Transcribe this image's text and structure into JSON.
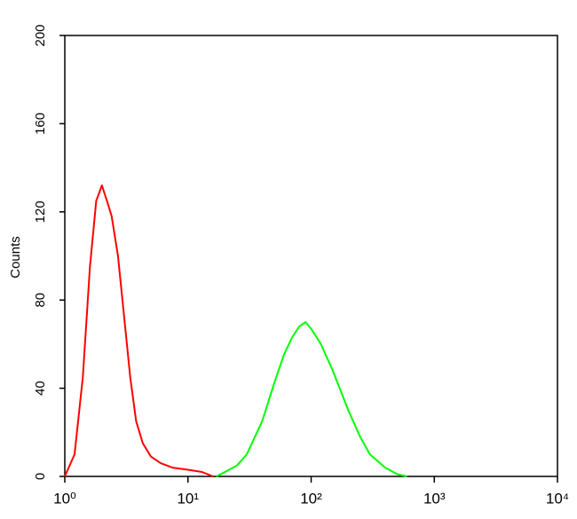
{
  "chart_data": {
    "type": "line",
    "y_label": "Counts",
    "xscale": "log",
    "xlim": [
      1,
      10000
    ],
    "xticks": [
      {
        "value": 1,
        "label": "10⁰"
      },
      {
        "value": 10,
        "label": "10¹"
      },
      {
        "value": 100,
        "label": "10²"
      },
      {
        "value": 1000,
        "label": "10³"
      },
      {
        "value": 10000,
        "label": "10⁴"
      }
    ],
    "ylim": [
      0,
      200
    ],
    "yticks": [
      0,
      40,
      80,
      120,
      160,
      200
    ],
    "series": [
      {
        "color": "#ff0000",
        "x": [
          1,
          1.2,
          1.4,
          1.6,
          1.8,
          2.0,
          2.2,
          2.4,
          2.7,
          3.0,
          3.4,
          3.8,
          4.3,
          5,
          6,
          7.5,
          10,
          13,
          16
        ],
        "values": [
          0,
          10,
          45,
          95,
          125,
          132,
          125,
          118,
          100,
          75,
          45,
          25,
          15,
          9,
          6,
          4,
          3,
          2,
          0
        ]
      },
      {
        "color": "#00ff00",
        "x": [
          17,
          20,
          25,
          30,
          40,
          50,
          60,
          70,
          80,
          90,
          100,
          120,
          150,
          200,
          250,
          300,
          400,
          500,
          600
        ],
        "values": [
          0,
          2,
          5,
          10,
          25,
          42,
          55,
          63,
          68,
          70,
          67,
          60,
          48,
          30,
          18,
          10,
          4,
          1,
          0
        ]
      }
    ]
  }
}
